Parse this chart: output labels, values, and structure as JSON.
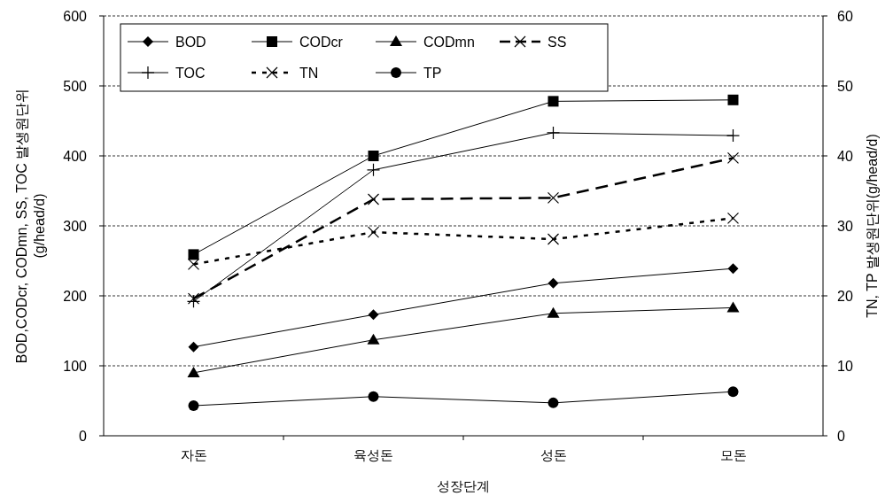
{
  "chart_data": {
    "type": "line",
    "xlabel": "성장단계",
    "ylabel": "BOD,CODcr, CODmn, SS, TOC  발생원단위 (g/head/d)",
    "y2label": "TN, TP 발생원단위(g/head/d)",
    "categories": [
      "자돈",
      "육성돈",
      "성돈",
      "모돈"
    ],
    "ylim": [
      0,
      600
    ],
    "yticks": [
      0,
      100,
      200,
      300,
      400,
      500,
      600
    ],
    "y2lim": [
      0,
      60
    ],
    "y2ticks": [
      0,
      10,
      20,
      30,
      40,
      50,
      60
    ],
    "grid": "y",
    "legend": "top left",
    "series": [
      {
        "name": "BOD",
        "color": "#000000",
        "marker": "diamond",
        "line_style": "solid",
        "values": [
          127,
          173,
          218,
          239
        ]
      },
      {
        "name": "CODcr",
        "color": "#000000",
        "marker": "square",
        "line_style": "solid",
        "values": [
          259,
          400,
          478,
          480
        ]
      },
      {
        "name": "CODmn",
        "color": "#000000",
        "marker": "triangle",
        "line_style": "solid",
        "values": [
          90,
          137,
          175,
          183
        ]
      },
      {
        "name": "SS",
        "color": "#000000",
        "marker": "cross",
        "line_style": "dashed",
        "values": [
          196,
          338,
          340,
          397
        ]
      },
      {
        "name": "TOC",
        "color": "#000000",
        "marker": "plus",
        "line_style": "solid",
        "values": [
          192,
          380,
          433,
          429
        ]
      },
      {
        "name": "TN",
        "color": "#000000",
        "marker": "cross",
        "line_style": "dotted",
        "axis": "y2",
        "values": [
          24.5,
          29.1,
          28.1,
          31.1
        ]
      },
      {
        "name": "TP",
        "color": "#000000",
        "marker": "circle",
        "line_style": "solid",
        "axis": "y2",
        "values": [
          4.3,
          5.6,
          4.7,
          6.3
        ]
      }
    ]
  }
}
